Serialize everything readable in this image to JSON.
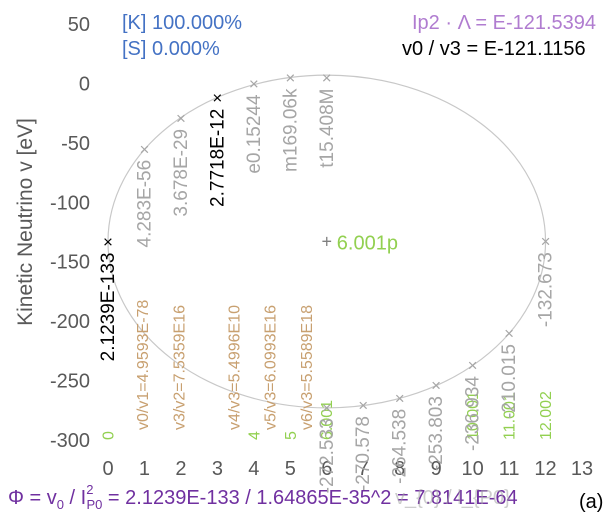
{
  "chart_data": {
    "type": "scatter",
    "xlabel": "",
    "ylabel": "Kinetic Neutrino v [eV]",
    "xlim": [
      0,
      13
    ],
    "ylim": [
      -300,
      50
    ],
    "x_ticks": [
      "0",
      "1",
      "2",
      "3",
      "4",
      "5",
      "6",
      "7",
      "8",
      "9",
      "10",
      "11",
      "12",
      "13"
    ],
    "y_ticks": [
      "50",
      "0",
      "-50",
      "-100",
      "-150",
      "-200",
      "-250",
      "-300"
    ],
    "grid": false,
    "ellipse": {
      "cx": 6.0,
      "cy": -133,
      "rx": 6.0,
      "ry": 140
    },
    "points": [
      {
        "x": 0,
        "y": -133,
        "label": "2.1239E-133",
        "color": "#000000"
      },
      {
        "x": 1,
        "y": -55,
        "label": "4.283E-56",
        "color": "#a6a6a6"
      },
      {
        "x": 2,
        "y": -29,
        "label": "3.678E-29",
        "color": "#a6a6a6"
      },
      {
        "x": 3,
        "y": -12,
        "label": "2.7718E-12",
        "color": "#000000"
      },
      {
        "x": 4,
        "y": 0,
        "label": "e0.15244",
        "color": "#a6a6a6"
      },
      {
        "x": 5,
        "y": 5,
        "label": "m169.06k",
        "color": "#a6a6a6"
      },
      {
        "x": 6,
        "y": 5,
        "label": "t15.408M",
        "color": "#a6a6a6"
      },
      {
        "x": 6,
        "y": -272.533,
        "label": "-272.533",
        "color": "#a6a6a6"
      },
      {
        "x": 7,
        "y": -270.578,
        "label": "-270.578",
        "color": "#a6a6a6"
      },
      {
        "x": 8,
        "y": -264.538,
        "label": "-264.538",
        "color": "#a6a6a6"
      },
      {
        "x": 9,
        "y": -253.803,
        "label": "-253.803",
        "color": "#a6a6a6"
      },
      {
        "x": 10,
        "y": -236.934,
        "label": "-236.934",
        "color": "#a6a6a6"
      },
      {
        "x": 11,
        "y": -210.015,
        "label": "-210.015",
        "color": "#a6a6a6"
      },
      {
        "x": 12,
        "y": -132.673,
        "label": "-132.673",
        "color": "#a6a6a6"
      }
    ],
    "center_point": {
      "x": 6,
      "y": -133,
      "label": "6.001p",
      "color": "#92d050"
    },
    "ratio_labels": [
      {
        "x": 1.1,
        "text": "v0/v1=4.9593E-78",
        "color": "#c8a070"
      },
      {
        "x": 2.1,
        "text": "v3/v2=7.5359E16",
        "color": "#c8a070"
      },
      {
        "x": 3.6,
        "text": "v4/v3=5.4996E10",
        "color": "#c8a070"
      },
      {
        "x": 4.6,
        "text": "v5/v3=6.0993E16",
        "color": "#c8a070"
      },
      {
        "x": 5.6,
        "text": "v6/v3=5.5589E18",
        "color": "#c8a070"
      }
    ],
    "bottom_green_labels": [
      {
        "x": 0.15,
        "text": "0"
      },
      {
        "x": 4.15,
        "text": "4"
      },
      {
        "x": 5.15,
        "text": "5"
      },
      {
        "x": 6.15,
        "text": "6.001"
      },
      {
        "x": 10.15,
        "text": "10.001"
      },
      {
        "x": 11.15,
        "text": "11.001"
      },
      {
        "x": 12.15,
        "text": "12.002"
      }
    ],
    "annotations": {
      "k_line": "[K] 100.000%",
      "s_line": "[S] 0.000%",
      "ip2_line": "Ip2 · Λ = E-121.5394",
      "v0v3_line": "v0 / v3 = E-121.1156",
      "phi_prefix": "Φ = v",
      "phi_sub0": "0",
      "phi_mid": " / I",
      "phi_sup": "2",
      "phi_sub1": "P0",
      "phi_rest": "  = 2.1239E-133 / 1.64865E-35^2 = 7.8141E-64",
      "phi_overlay": "v_{0} / l_{P0}",
      "panel_tag": "(a)"
    },
    "colors": {
      "blue": "#4472c4",
      "purple": "#b07cd0",
      "phi": "#7030a0",
      "tan": "#c8a070",
      "green": "#92d050",
      "gray": "#a6a6a6",
      "axis_text": "#595959"
    }
  }
}
